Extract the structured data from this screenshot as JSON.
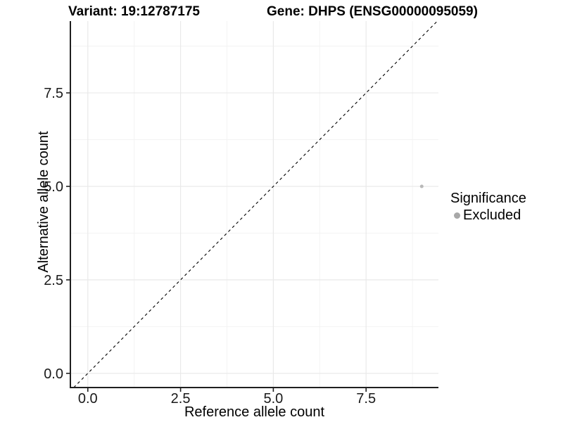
{
  "titles": {
    "variant": "Variant: 19:12787175",
    "gene": "Gene: DHPS (ENSG00000095059)"
  },
  "chart_data": {
    "type": "scatter",
    "title_left": "Variant: 19:12787175",
    "title_right": "Gene: DHPS (ENSG00000095059)",
    "xlabel": "Reference allele count",
    "ylabel": "Alternative allele count",
    "xlim": [
      -0.47,
      9.45
    ],
    "ylim": [
      -0.38,
      9.42
    ],
    "x_ticks": [
      {
        "value": 0,
        "label": "0.0"
      },
      {
        "value": 2.5,
        "label": "2.5"
      },
      {
        "value": 5,
        "label": "5.0"
      },
      {
        "value": 7.5,
        "label": "7.5"
      }
    ],
    "y_ticks": [
      {
        "value": 0,
        "label": "0.0"
      },
      {
        "value": 2.5,
        "label": "2.5"
      },
      {
        "value": 5,
        "label": "5.0"
      },
      {
        "value": 7.5,
        "label": "7.5"
      }
    ],
    "grid": {
      "major": true,
      "minor": true
    },
    "reference_line": {
      "type": "identity",
      "equation": "y = x",
      "style": "dashed",
      "color": "#000000"
    },
    "series": [
      {
        "name": "Excluded",
        "color": "#b9b9b9",
        "points": [
          {
            "x": 9,
            "y": 5
          }
        ]
      }
    ],
    "legend": {
      "title": "Significance",
      "position": "right",
      "items": [
        {
          "label": "Excluded",
          "color": "#a8a8a8"
        }
      ]
    }
  },
  "colors": {
    "background": "#ffffff",
    "grid_major": "#e9e9e9",
    "grid_minor": "#f3f3f3",
    "axis_line": "#1f1f1f",
    "tick_text": "#1a1a1a",
    "title_text": "#000000"
  }
}
